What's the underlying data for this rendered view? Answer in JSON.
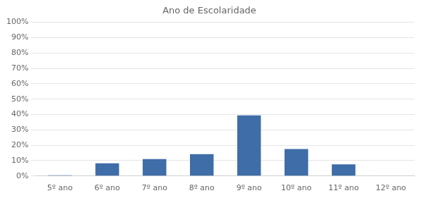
{
  "chart_data": {
    "type": "bar",
    "title": "Ano de Escolaridade",
    "categories": [
      "5º ano",
      "6º ano",
      "7º ano",
      "8º ano",
      "9º ano",
      "10º ano",
      "11º ano",
      "12º ano"
    ],
    "values": [
      0.5,
      8.3,
      11.0,
      14.2,
      39.4,
      17.6,
      7.6,
      0.0
    ],
    "color": "#3E6DA8",
    "ylim": [
      0,
      100
    ],
    "yticks": [
      {
        "value": 0,
        "label": "0%"
      },
      {
        "value": 10,
        "label": "10%"
      },
      {
        "value": 20,
        "label": "20%"
      },
      {
        "value": 30,
        "label": "30%"
      },
      {
        "value": 40,
        "label": "40%"
      },
      {
        "value": 50,
        "label": "50%"
      },
      {
        "value": 60,
        "label": "60%"
      },
      {
        "value": 70,
        "label": "70%"
      },
      {
        "value": 80,
        "label": "80%"
      },
      {
        "value": 90,
        "label": "90%"
      },
      {
        "value": 100,
        "label": "100%"
      }
    ],
    "grid": true
  }
}
